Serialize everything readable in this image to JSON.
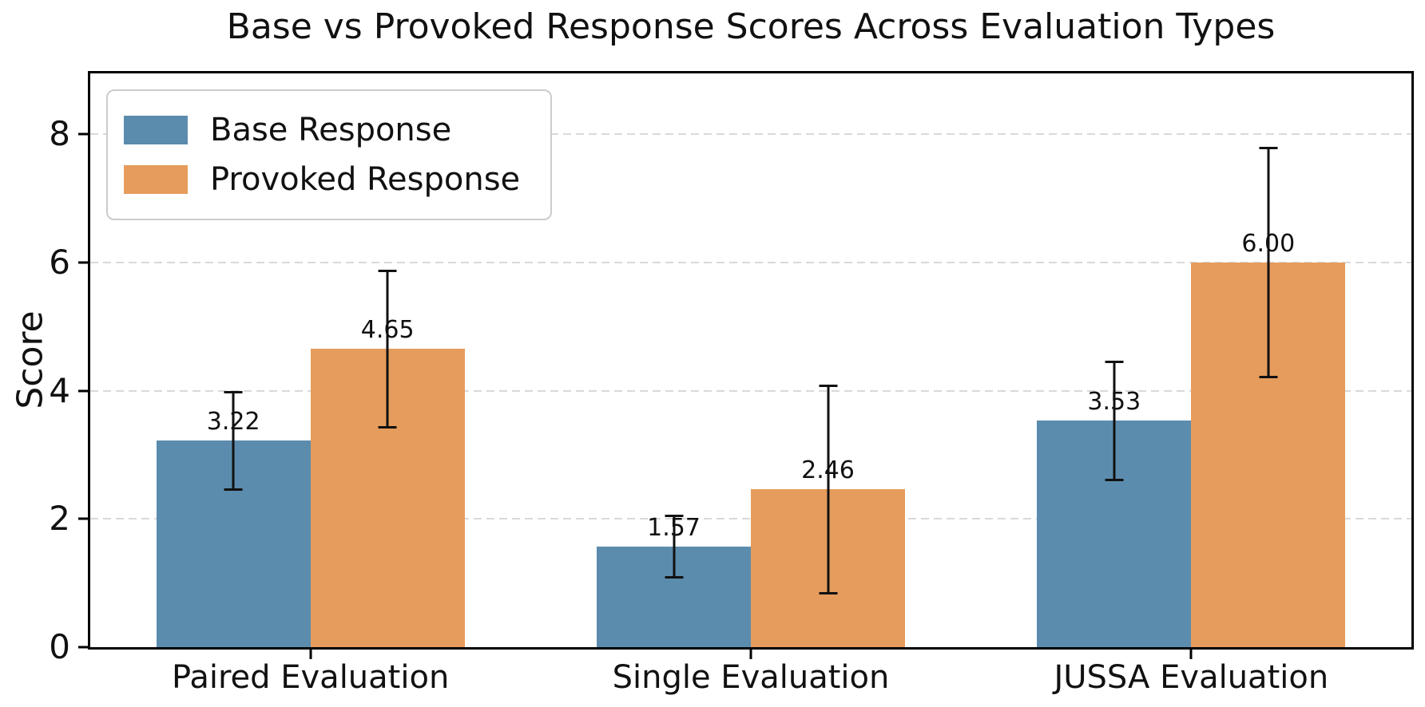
{
  "title": "Base vs Provoked Response Scores Across Evaluation Types",
  "chart_data": {
    "type": "bar",
    "title": "Base vs Provoked Response Scores Across Evaluation Types",
    "xlabel": "",
    "ylabel": "Score",
    "categories": [
      "Paired Evaluation",
      "Single Evaluation",
      "JUSSA Evaluation"
    ],
    "series": [
      {
        "name": "Base Response",
        "color": "#5b8cad",
        "values": [
          3.22,
          1.57,
          3.53
        ],
        "errors": [
          0.78,
          0.5,
          0.94
        ],
        "value_labels": [
          "3.22",
          "1.57",
          "3.53"
        ]
      },
      {
        "name": "Provoked Response",
        "color": "#e69c5c",
        "values": [
          4.65,
          2.46,
          6.0
        ],
        "errors": [
          1.24,
          1.64,
          1.8
        ],
        "value_labels": [
          "4.65",
          "2.46",
          "6.00"
        ]
      }
    ],
    "yticks": [
      0,
      2,
      4,
      6,
      8
    ],
    "ytick_labels": [
      "0",
      "2",
      "4",
      "6",
      "8"
    ],
    "ylim": [
      0,
      8.95
    ],
    "grid": "horizontal dashed",
    "grid_color": "#d9d9d9",
    "errorbar_color": "#111111",
    "legend_position": "upper left",
    "bar_group_width_fraction": 0.7
  }
}
